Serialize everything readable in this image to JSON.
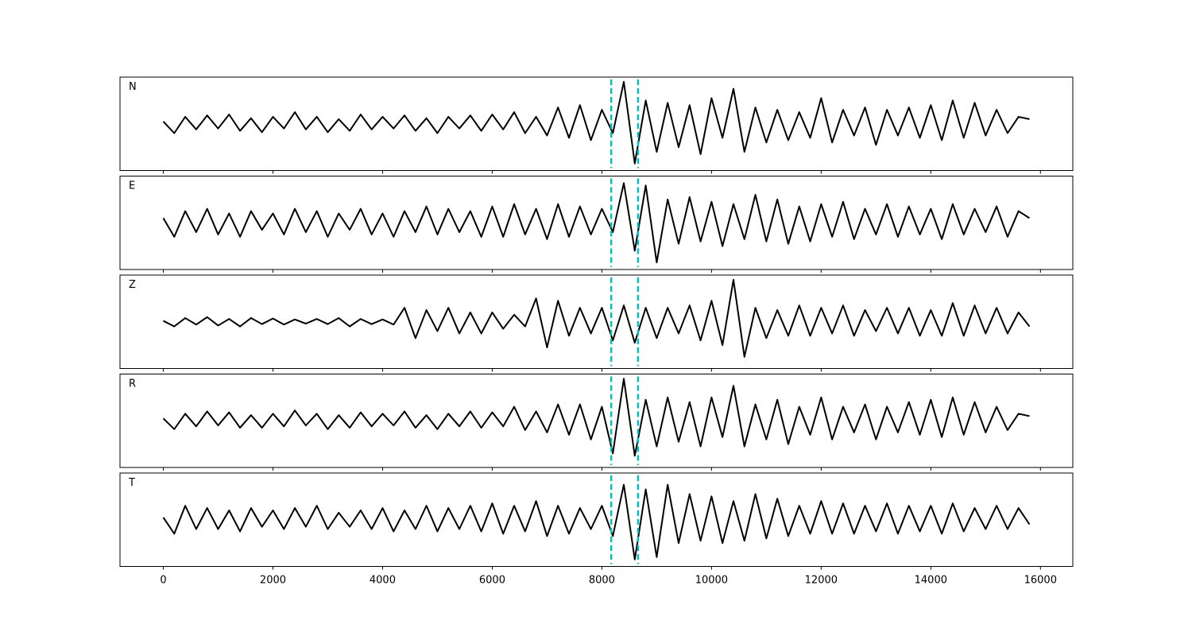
{
  "chart_data": {
    "type": "line",
    "stacked_panels": true,
    "x": [
      0,
      200,
      400,
      600,
      800,
      1000,
      1200,
      1400,
      1600,
      1800,
      2000,
      2200,
      2400,
      2600,
      2800,
      3000,
      3200,
      3400,
      3600,
      3800,
      4000,
      4200,
      4400,
      4600,
      4800,
      5000,
      5200,
      5400,
      5600,
      5800,
      6000,
      6200,
      6400,
      6600,
      6800,
      7000,
      7200,
      7400,
      7600,
      7800,
      8000,
      8200,
      8400,
      8600,
      8800,
      9000,
      9200,
      9400,
      9600,
      9800,
      10000,
      10200,
      10400,
      10600,
      10800,
      11000,
      11200,
      11400,
      11600,
      11800,
      12000,
      12200,
      12400,
      12600,
      12800,
      13000,
      13200,
      13400,
      13600,
      13800,
      14000,
      14200,
      14400,
      14600,
      14800,
      15000,
      15200,
      15400,
      15600,
      15800
    ],
    "xlim": [
      -790,
      16590
    ],
    "xticks": [
      0,
      2000,
      4000,
      6000,
      8000,
      10000,
      12000,
      14000,
      16000
    ],
    "ylim": [
      -1,
      1
    ],
    "markers": [
      8170,
      8660
    ],
    "marker_color": "#00bfbf",
    "series": [
      {
        "name": "N",
        "color": "#000000",
        "values": [
          0.05,
          -0.2,
          0.15,
          -0.12,
          0.18,
          -0.1,
          0.2,
          -0.15,
          0.12,
          -0.18,
          0.15,
          -0.1,
          0.25,
          -0.12,
          0.15,
          -0.18,
          0.1,
          -0.15,
          0.2,
          -0.12,
          0.15,
          -0.1,
          0.18,
          -0.15,
          0.12,
          -0.2,
          0.15,
          -0.1,
          0.18,
          -0.15,
          0.2,
          -0.12,
          0.25,
          -0.2,
          0.15,
          -0.25,
          0.35,
          -0.3,
          0.4,
          -0.35,
          0.3,
          -0.2,
          0.9,
          -0.85,
          0.5,
          -0.6,
          0.45,
          -0.5,
          0.4,
          -0.65,
          0.55,
          -0.3,
          0.75,
          -0.6,
          0.35,
          -0.4,
          0.3,
          -0.35,
          0.25,
          -0.3,
          0.55,
          -0.4,
          0.3,
          -0.25,
          0.35,
          -0.45,
          0.3,
          -0.25,
          0.35,
          -0.3,
          0.4,
          -0.35,
          0.5,
          -0.3,
          0.45,
          -0.25,
          0.3,
          -0.2,
          0.15,
          0.1
        ]
      },
      {
        "name": "E",
        "color": "#000000",
        "values": [
          0.1,
          -0.3,
          0.25,
          -0.2,
          0.3,
          -0.25,
          0.2,
          -0.3,
          0.25,
          -0.15,
          0.2,
          -0.25,
          0.3,
          -0.2,
          0.25,
          -0.3,
          0.2,
          -0.15,
          0.3,
          -0.25,
          0.2,
          -0.3,
          0.25,
          -0.2,
          0.35,
          -0.25,
          0.3,
          -0.2,
          0.25,
          -0.3,
          0.35,
          -0.3,
          0.4,
          -0.25,
          0.3,
          -0.35,
          0.4,
          -0.3,
          0.35,
          -0.25,
          0.3,
          -0.2,
          0.85,
          -0.6,
          0.8,
          -0.85,
          0.5,
          -0.45,
          0.55,
          -0.4,
          0.45,
          -0.5,
          0.4,
          -0.35,
          0.6,
          -0.4,
          0.5,
          -0.45,
          0.35,
          -0.4,
          0.4,
          -0.3,
          0.45,
          -0.35,
          0.3,
          -0.25,
          0.4,
          -0.3,
          0.35,
          -0.25,
          0.3,
          -0.35,
          0.4,
          -0.25,
          0.3,
          -0.2,
          0.35,
          -0.3,
          0.25,
          0.1
        ]
      },
      {
        "name": "Z",
        "color": "#000000",
        "values": [
          0.02,
          -0.1,
          0.08,
          -0.06,
          0.1,
          -0.08,
          0.06,
          -0.1,
          0.08,
          -0.05,
          0.07,
          -0.06,
          0.05,
          -0.04,
          0.06,
          -0.05,
          0.08,
          -0.1,
          0.06,
          -0.05,
          0.05,
          -0.06,
          0.3,
          -0.35,
          0.25,
          -0.2,
          0.3,
          -0.25,
          0.2,
          -0.25,
          0.2,
          -0.15,
          0.15,
          -0.1,
          0.5,
          -0.55,
          0.45,
          -0.3,
          0.3,
          -0.25,
          0.3,
          -0.4,
          0.35,
          -0.45,
          0.3,
          -0.35,
          0.3,
          -0.25,
          0.35,
          -0.4,
          0.45,
          -0.5,
          0.9,
          -0.75,
          0.3,
          -0.35,
          0.25,
          -0.3,
          0.35,
          -0.3,
          0.3,
          -0.25,
          0.35,
          -0.3,
          0.25,
          -0.2,
          0.3,
          -0.25,
          0.3,
          -0.3,
          0.25,
          -0.3,
          0.4,
          -0.3,
          0.35,
          -0.25,
          0.3,
          -0.25,
          0.2,
          -0.1
        ]
      },
      {
        "name": "R",
        "color": "#000000",
        "values": [
          0.05,
          -0.18,
          0.15,
          -0.12,
          0.2,
          -0.1,
          0.18,
          -0.15,
          0.12,
          -0.15,
          0.15,
          -0.12,
          0.22,
          -0.1,
          0.15,
          -0.18,
          0.12,
          -0.15,
          0.18,
          -0.12,
          0.15,
          -0.1,
          0.2,
          -0.15,
          0.12,
          -0.18,
          0.15,
          -0.12,
          0.2,
          -0.15,
          0.18,
          -0.12,
          0.3,
          -0.2,
          0.2,
          -0.25,
          0.35,
          -0.3,
          0.35,
          -0.4,
          0.3,
          -0.7,
          0.9,
          -0.75,
          0.45,
          -0.55,
          0.5,
          -0.45,
          0.4,
          -0.55,
          0.5,
          -0.35,
          0.75,
          -0.55,
          0.35,
          -0.4,
          0.45,
          -0.5,
          0.3,
          -0.3,
          0.5,
          -0.4,
          0.3,
          -0.25,
          0.35,
          -0.4,
          0.3,
          -0.25,
          0.4,
          -0.3,
          0.45,
          -0.35,
          0.5,
          -0.3,
          0.4,
          -0.25,
          0.3,
          -0.2,
          0.15,
          0.1
        ]
      },
      {
        "name": "T",
        "color": "#000000",
        "values": [
          0.05,
          -0.3,
          0.3,
          -0.2,
          0.25,
          -0.2,
          0.2,
          -0.25,
          0.25,
          -0.15,
          0.2,
          -0.2,
          0.25,
          -0.15,
          0.3,
          -0.2,
          0.15,
          -0.15,
          0.2,
          -0.2,
          0.25,
          -0.25,
          0.2,
          -0.2,
          0.3,
          -0.25,
          0.25,
          -0.2,
          0.3,
          -0.25,
          0.35,
          -0.3,
          0.3,
          -0.25,
          0.4,
          -0.35,
          0.3,
          -0.3,
          0.25,
          -0.2,
          0.3,
          -0.35,
          0.75,
          -0.85,
          0.65,
          -0.8,
          0.75,
          -0.5,
          0.55,
          -0.45,
          0.5,
          -0.5,
          0.4,
          -0.45,
          0.55,
          -0.4,
          0.45,
          -0.35,
          0.3,
          -0.3,
          0.4,
          -0.3,
          0.35,
          -0.3,
          0.3,
          -0.25,
          0.35,
          -0.3,
          0.3,
          -0.25,
          0.3,
          -0.3,
          0.35,
          -0.25,
          0.25,
          -0.2,
          0.3,
          -0.2,
          0.25,
          -0.1
        ]
      }
    ]
  }
}
